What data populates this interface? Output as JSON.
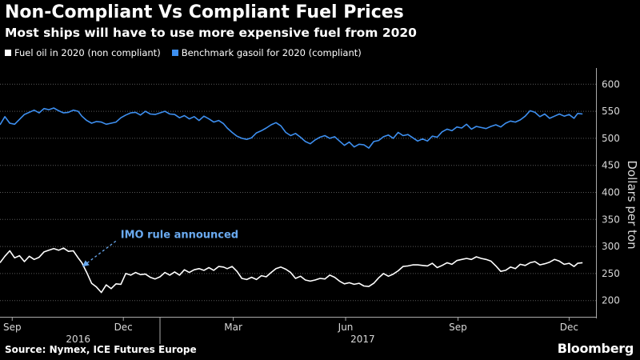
{
  "header": {
    "title": "Non-Compliant Vs Compliant Fuel Prices",
    "subtitle": "Most ships will have to use more expensive fuel from 2020"
  },
  "footer": {
    "source": "Source: Nymex, ICE Futures Europe",
    "brand": "Bloomberg"
  },
  "chart_data": {
    "type": "line",
    "title": "Non-Compliant Vs Compliant Fuel Prices",
    "subtitle": "Most ships will have to use more expensive fuel from 2020",
    "ylabel": "Dollars per ton",
    "xlabel": "",
    "ylim": [
      170,
      630
    ],
    "yticks": [
      200,
      250,
      300,
      350,
      400,
      450,
      500,
      550,
      600
    ],
    "grid": true,
    "legend_position": "top-left",
    "x_ticks": [
      {
        "label": "Sep",
        "date": "2016-09"
      },
      {
        "label": "Dec",
        "date": "2016-12"
      },
      {
        "label": "Mar",
        "date": "2017-03"
      },
      {
        "label": "Jun",
        "date": "2017-06"
      },
      {
        "label": "Sep",
        "date": "2017-09"
      },
      {
        "label": "Dec",
        "date": "2017-12"
      }
    ],
    "year_labels": [
      {
        "label": "2016",
        "date": "2016-10-25"
      },
      {
        "label": "2017",
        "date": "2017-06-15"
      }
    ],
    "year_divider_date": "2016-12-31",
    "annotation": {
      "text": "IMO rule announced",
      "date": "2016-10-27",
      "value": 270
    },
    "series": [
      {
        "name": "Fuel oil in 2020 (non compliant)",
        "color": "#ffffff",
        "points": [
          [
            "2016-08-22",
            270
          ],
          [
            "2016-08-26",
            282
          ],
          [
            "2016-08-30",
            292
          ],
          [
            "2016-09-03",
            279
          ],
          [
            "2016-09-07",
            283
          ],
          [
            "2016-09-11",
            272
          ],
          [
            "2016-09-15",
            282
          ],
          [
            "2016-09-19",
            276
          ],
          [
            "2016-09-23",
            280
          ],
          [
            "2016-09-27",
            290
          ],
          [
            "2016-10-01",
            293
          ],
          [
            "2016-10-05",
            296
          ],
          [
            "2016-10-09",
            293
          ],
          [
            "2016-10-13",
            297
          ],
          [
            "2016-10-17",
            291
          ],
          [
            "2016-10-21",
            292
          ],
          [
            "2016-10-25",
            279
          ],
          [
            "2016-10-28",
            270
          ],
          [
            "2016-11-01",
            252
          ],
          [
            "2016-11-05",
            232
          ],
          [
            "2016-11-09",
            225
          ],
          [
            "2016-11-13",
            215
          ],
          [
            "2016-11-17",
            229
          ],
          [
            "2016-11-21",
            222
          ],
          [
            "2016-11-25",
            231
          ],
          [
            "2016-11-29",
            230
          ],
          [
            "2016-12-03",
            250
          ],
          [
            "2016-12-07",
            247
          ],
          [
            "2016-12-11",
            252
          ],
          [
            "2016-12-15",
            248
          ],
          [
            "2016-12-19",
            249
          ],
          [
            "2016-12-23",
            243
          ],
          [
            "2016-12-27",
            240
          ],
          [
            "2016-12-31",
            244
          ],
          [
            "2017-01-04",
            252
          ],
          [
            "2017-01-08",
            247
          ],
          [
            "2017-01-12",
            253
          ],
          [
            "2017-01-16",
            247
          ],
          [
            "2017-01-20",
            257
          ],
          [
            "2017-01-24",
            252
          ],
          [
            "2017-01-28",
            257
          ],
          [
            "2017-02-01",
            259
          ],
          [
            "2017-02-05",
            256
          ],
          [
            "2017-02-09",
            261
          ],
          [
            "2017-02-13",
            256
          ],
          [
            "2017-02-17",
            263
          ],
          [
            "2017-02-21",
            262
          ],
          [
            "2017-02-24",
            259
          ],
          [
            "2017-02-28",
            263
          ],
          [
            "2017-03-04",
            254
          ],
          [
            "2017-03-08",
            241
          ],
          [
            "2017-03-12",
            239
          ],
          [
            "2017-03-16",
            243
          ],
          [
            "2017-03-20",
            239
          ],
          [
            "2017-03-24",
            246
          ],
          [
            "2017-03-28",
            244
          ],
          [
            "2017-04-01",
            252
          ],
          [
            "2017-04-05",
            259
          ],
          [
            "2017-04-09",
            262
          ],
          [
            "2017-04-13",
            258
          ],
          [
            "2017-04-17",
            252
          ],
          [
            "2017-04-21",
            241
          ],
          [
            "2017-04-25",
            245
          ],
          [
            "2017-04-29",
            238
          ],
          [
            "2017-05-03",
            236
          ],
          [
            "2017-05-07",
            238
          ],
          [
            "2017-05-11",
            241
          ],
          [
            "2017-05-15",
            240
          ],
          [
            "2017-05-19",
            247
          ],
          [
            "2017-05-23",
            243
          ],
          [
            "2017-05-27",
            236
          ],
          [
            "2017-05-31",
            231
          ],
          [
            "2017-06-04",
            233
          ],
          [
            "2017-06-08",
            230
          ],
          [
            "2017-06-12",
            232
          ],
          [
            "2017-06-16",
            227
          ],
          [
            "2017-06-20",
            226
          ],
          [
            "2017-06-24",
            232
          ],
          [
            "2017-06-28",
            242
          ],
          [
            "2017-07-02",
            250
          ],
          [
            "2017-07-06",
            245
          ],
          [
            "2017-07-10",
            249
          ],
          [
            "2017-07-14",
            255
          ],
          [
            "2017-07-18",
            263
          ],
          [
            "2017-07-22",
            264
          ],
          [
            "2017-07-26",
            266
          ],
          [
            "2017-07-30",
            266
          ],
          [
            "2017-08-03",
            265
          ],
          [
            "2017-08-07",
            264
          ],
          [
            "2017-08-11",
            269
          ],
          [
            "2017-08-15",
            261
          ],
          [
            "2017-08-19",
            265
          ],
          [
            "2017-08-23",
            270
          ],
          [
            "2017-08-27",
            267
          ],
          [
            "2017-08-31",
            274
          ],
          [
            "2017-09-04",
            276
          ],
          [
            "2017-09-08",
            278
          ],
          [
            "2017-09-12",
            276
          ],
          [
            "2017-09-16",
            281
          ],
          [
            "2017-09-20",
            278
          ],
          [
            "2017-09-24",
            276
          ],
          [
            "2017-09-28",
            273
          ],
          [
            "2017-10-02",
            264
          ],
          [
            "2017-10-06",
            254
          ],
          [
            "2017-10-10",
            256
          ],
          [
            "2017-10-14",
            262
          ],
          [
            "2017-10-18",
            259
          ],
          [
            "2017-10-22",
            267
          ],
          [
            "2017-10-26",
            265
          ],
          [
            "2017-10-30",
            270
          ],
          [
            "2017-11-03",
            272
          ],
          [
            "2017-11-07",
            266
          ],
          [
            "2017-11-11",
            268
          ],
          [
            "2017-11-15",
            271
          ],
          [
            "2017-11-19",
            276
          ],
          [
            "2017-11-23",
            273
          ],
          [
            "2017-11-27",
            267
          ],
          [
            "2017-12-01",
            269
          ],
          [
            "2017-12-05",
            263
          ],
          [
            "2017-12-08",
            269
          ],
          [
            "2017-12-12",
            270
          ]
        ]
      },
      {
        "name": "Benchmark gasoil for 2020 (compliant)",
        "color": "#3d8ff0",
        "points": [
          [
            "2016-08-22",
            525
          ],
          [
            "2016-08-26",
            540
          ],
          [
            "2016-08-30",
            528
          ],
          [
            "2016-09-03",
            526
          ],
          [
            "2016-09-07",
            535
          ],
          [
            "2016-09-11",
            544
          ],
          [
            "2016-09-15",
            548
          ],
          [
            "2016-09-19",
            552
          ],
          [
            "2016-09-23",
            547
          ],
          [
            "2016-09-27",
            555
          ],
          [
            "2016-10-01",
            553
          ],
          [
            "2016-10-05",
            556
          ],
          [
            "2016-10-09",
            551
          ],
          [
            "2016-10-13",
            547
          ],
          [
            "2016-10-17",
            548
          ],
          [
            "2016-10-21",
            552
          ],
          [
            "2016-10-25",
            550
          ],
          [
            "2016-10-28",
            541
          ],
          [
            "2016-11-01",
            533
          ],
          [
            "2016-11-05",
            528
          ],
          [
            "2016-11-09",
            531
          ],
          [
            "2016-11-13",
            530
          ],
          [
            "2016-11-17",
            526
          ],
          [
            "2016-11-21",
            528
          ],
          [
            "2016-11-25",
            530
          ],
          [
            "2016-11-29",
            538
          ],
          [
            "2016-12-03",
            543
          ],
          [
            "2016-12-07",
            547
          ],
          [
            "2016-12-11",
            548
          ],
          [
            "2016-12-15",
            543
          ],
          [
            "2016-12-19",
            550
          ],
          [
            "2016-12-23",
            545
          ],
          [
            "2016-12-27",
            544
          ],
          [
            "2016-12-31",
            547
          ],
          [
            "2017-01-04",
            550
          ],
          [
            "2017-01-08",
            545
          ],
          [
            "2017-01-12",
            544
          ],
          [
            "2017-01-16",
            538
          ],
          [
            "2017-01-20",
            542
          ],
          [
            "2017-01-24",
            536
          ],
          [
            "2017-01-28",
            540
          ],
          [
            "2017-02-01",
            533
          ],
          [
            "2017-02-05",
            541
          ],
          [
            "2017-02-09",
            536
          ],
          [
            "2017-02-13",
            530
          ],
          [
            "2017-02-17",
            533
          ],
          [
            "2017-02-21",
            527
          ],
          [
            "2017-02-24",
            519
          ],
          [
            "2017-02-28",
            511
          ],
          [
            "2017-03-04",
            504
          ],
          [
            "2017-03-08",
            500
          ],
          [
            "2017-03-12",
            498
          ],
          [
            "2017-03-16",
            501
          ],
          [
            "2017-03-20",
            510
          ],
          [
            "2017-03-24",
            514
          ],
          [
            "2017-03-28",
            519
          ],
          [
            "2017-04-01",
            525
          ],
          [
            "2017-04-05",
            529
          ],
          [
            "2017-04-09",
            523
          ],
          [
            "2017-04-13",
            511
          ],
          [
            "2017-04-17",
            505
          ],
          [
            "2017-04-21",
            509
          ],
          [
            "2017-04-25",
            502
          ],
          [
            "2017-04-29",
            494
          ],
          [
            "2017-05-03",
            490
          ],
          [
            "2017-05-07",
            497
          ],
          [
            "2017-05-11",
            502
          ],
          [
            "2017-05-15",
            505
          ],
          [
            "2017-05-19",
            500
          ],
          [
            "2017-05-23",
            503
          ],
          [
            "2017-05-27",
            495
          ],
          [
            "2017-05-31",
            487
          ],
          [
            "2017-06-04",
            493
          ],
          [
            "2017-06-08",
            484
          ],
          [
            "2017-06-12",
            489
          ],
          [
            "2017-06-16",
            488
          ],
          [
            "2017-06-20",
            482
          ],
          [
            "2017-06-24",
            494
          ],
          [
            "2017-06-28",
            496
          ],
          [
            "2017-07-02",
            503
          ],
          [
            "2017-07-06",
            506
          ],
          [
            "2017-07-10",
            500
          ],
          [
            "2017-07-14",
            511
          ],
          [
            "2017-07-18",
            505
          ],
          [
            "2017-07-22",
            507
          ],
          [
            "2017-07-26",
            501
          ],
          [
            "2017-07-30",
            495
          ],
          [
            "2017-08-03",
            499
          ],
          [
            "2017-08-07",
            495
          ],
          [
            "2017-08-11",
            504
          ],
          [
            "2017-08-15",
            502
          ],
          [
            "2017-08-19",
            512
          ],
          [
            "2017-08-23",
            517
          ],
          [
            "2017-08-27",
            514
          ],
          [
            "2017-08-31",
            521
          ],
          [
            "2017-09-04",
            519
          ],
          [
            "2017-09-08",
            526
          ],
          [
            "2017-09-12",
            517
          ],
          [
            "2017-09-16",
            522
          ],
          [
            "2017-09-20",
            520
          ],
          [
            "2017-09-24",
            518
          ],
          [
            "2017-09-28",
            522
          ],
          [
            "2017-10-02",
            525
          ],
          [
            "2017-10-06",
            521
          ],
          [
            "2017-10-10",
            528
          ],
          [
            "2017-10-14",
            532
          ],
          [
            "2017-10-18",
            530
          ],
          [
            "2017-10-22",
            534
          ],
          [
            "2017-10-26",
            541
          ],
          [
            "2017-10-30",
            551
          ],
          [
            "2017-11-03",
            548
          ],
          [
            "2017-11-07",
            540
          ],
          [
            "2017-11-11",
            545
          ],
          [
            "2017-11-15",
            537
          ],
          [
            "2017-11-19",
            541
          ],
          [
            "2017-11-23",
            545
          ],
          [
            "2017-11-27",
            541
          ],
          [
            "2017-12-01",
            544
          ],
          [
            "2017-12-05",
            537
          ],
          [
            "2017-12-08",
            546
          ],
          [
            "2017-12-12",
            545
          ]
        ]
      }
    ]
  }
}
